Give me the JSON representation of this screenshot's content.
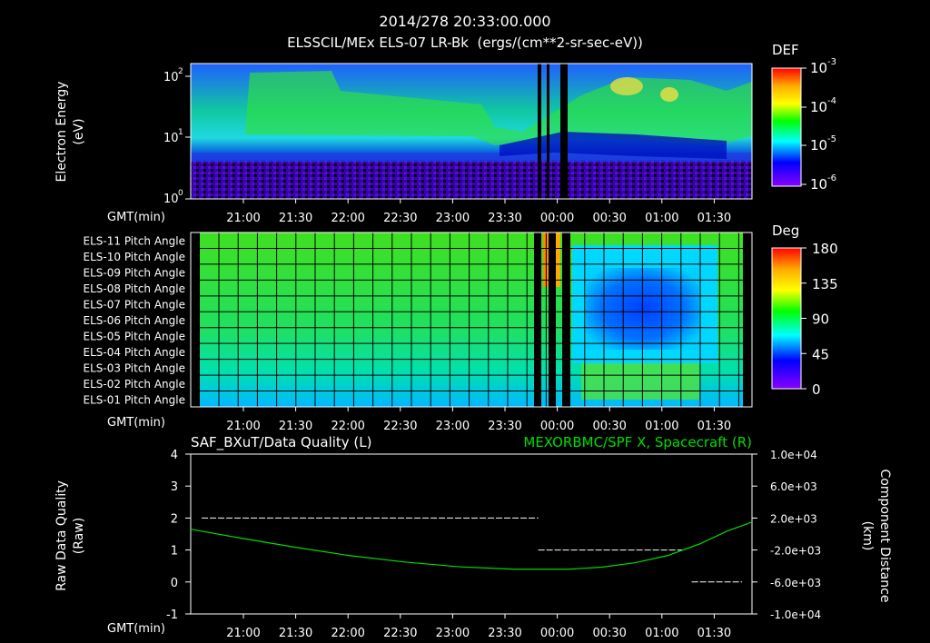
{
  "header": {
    "title": "2014/278 20:33:00.000",
    "subtitle": "ELSSCIL/MEx ELS-07 LR-Bk  (ergs/(cm**2-sr-sec-eV))"
  },
  "colors": {
    "background": "#000000",
    "foreground": "#ffffff",
    "series_green": "#00dd00"
  },
  "chart_data": [
    {
      "type": "heatmap",
      "name": "energy-spectrogram",
      "ylabel": "Electron Energy\n(eV)",
      "y_ticks": [
        "10^0",
        "10^1",
        "10^2"
      ],
      "ylim": [
        1,
        150
      ],
      "y_scale": "log",
      "xlabel": "GMT(min)",
      "x_ticks": [
        "21:00",
        "21:30",
        "22:00",
        "22:30",
        "23:00",
        "23:30",
        "00:00",
        "00:30",
        "01:00",
        "01:30"
      ],
      "colorbar": {
        "label": "DEF",
        "ticks": [
          "10^-3",
          "10^-4",
          "10^-5",
          "10^-6"
        ]
      }
    },
    {
      "type": "heatmap",
      "name": "pitch-angle-panel",
      "rows": [
        "ELS-11 Pitch Angle",
        "ELS-10 Pitch Angle",
        "ELS-09 Pitch Angle",
        "ELS-08 Pitch Angle",
        "ELS-07 Pitch Angle",
        "ELS-06 Pitch Angle",
        "ELS-05 Pitch Angle",
        "ELS-04 Pitch Angle",
        "ELS-03 Pitch Angle",
        "ELS-02 Pitch Angle",
        "ELS-01 Pitch Angle"
      ],
      "xlabel": "GMT(min)",
      "x_ticks": [
        "21:00",
        "21:30",
        "22:00",
        "22:30",
        "23:00",
        "23:30",
        "00:00",
        "00:30",
        "01:00",
        "01:30"
      ],
      "colorbar": {
        "label": "Deg",
        "ticks": [
          "180",
          "135",
          "90",
          "45",
          "0"
        ]
      }
    },
    {
      "type": "line",
      "name": "quality-and-distance",
      "title_left": "SAF_BXuT/Data Quality (L)",
      "title_right": "MEXORBMC/SPF X, Spacecraft (R)",
      "ylabel_left": "Raw Data Quality\n(Raw)",
      "ylabel_right": "Component Distance\n(km)",
      "xlabel": "GMT(min)",
      "x_ticks": [
        "21:00",
        "21:30",
        "22:00",
        "22:30",
        "23:00",
        "23:30",
        "00:00",
        "00:30",
        "01:00",
        "01:30"
      ],
      "xlim": [
        20.55,
        25.67
      ],
      "ylim_left": [
        -1,
        4
      ],
      "y_ticks_left": [
        "4",
        "3",
        "2",
        "1",
        "0",
        "-1"
      ],
      "ylim_right": [
        -10000,
        10000
      ],
      "y_ticks_right": [
        "1.0e+04",
        "6.0e+03",
        "2.0e+03",
        "-2.0e+03",
        "-6.0e+03",
        "-1.0e+04"
      ],
      "series": [
        {
          "axis": "left",
          "style": "dashed",
          "segments": [
            {
              "x": [
                20.65,
                23.72
              ],
              "y": [
                2,
                2
              ]
            },
            {
              "x": [
                23.72,
                25.04
              ],
              "y": [
                1,
                1
              ]
            },
            {
              "x": [
                25.12,
                25.58
              ],
              "y": [
                0,
                0
              ]
            }
          ]
        },
        {
          "axis": "right",
          "style": "solid",
          "x": [
            20.55,
            21.0,
            21.5,
            22.0,
            22.5,
            23.0,
            23.5,
            24.0,
            24.3,
            24.6,
            24.9,
            25.2,
            25.45,
            25.67
          ],
          "y": [
            600,
            -500,
            -1650,
            -2700,
            -3500,
            -4100,
            -4400,
            -4400,
            -4150,
            -3600,
            -2700,
            -1200,
            400,
            1500
          ]
        }
      ]
    }
  ]
}
